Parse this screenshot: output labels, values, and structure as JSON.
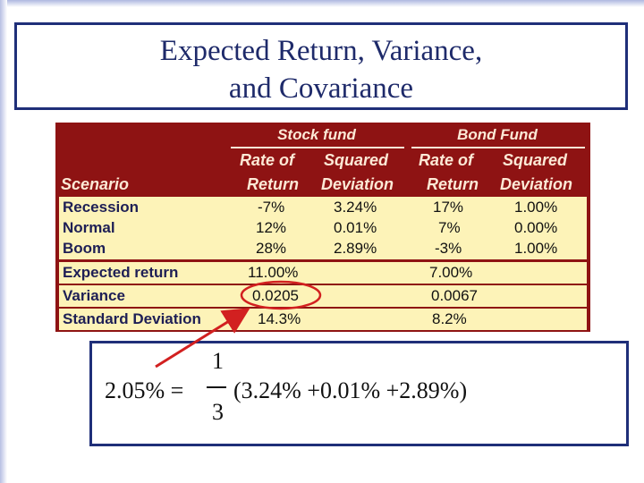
{
  "title": {
    "line1": "Expected Return, Variance,",
    "line2": "and Covariance"
  },
  "table": {
    "group_stock": "Stock fund",
    "group_bond": "Bond Fund",
    "col_scenario": "Scenario",
    "col_rate_1": "Rate of",
    "col_rate_2": "Return",
    "col_sq_1": "Squared",
    "col_sq_2": "Deviation",
    "rows": [
      {
        "label": "Recession",
        "stock_rate": "-7%",
        "stock_sq": "3.24%",
        "bond_rate": "17%",
        "bond_sq": "1.00%"
      },
      {
        "label": "Normal",
        "stock_rate": "12%",
        "stock_sq": "0.01%",
        "bond_rate": "7%",
        "bond_sq": "0.00%"
      },
      {
        "label": "Boom",
        "stock_rate": "28%",
        "stock_sq": "2.89%",
        "bond_rate": "-3%",
        "bond_sq": "1.00%"
      }
    ],
    "expected": {
      "label": "Expected return",
      "stock": "11.00%",
      "bond": "7.00%"
    },
    "variance": {
      "label": "Variance",
      "stock": "0.0205",
      "bond": "0.0067"
    },
    "stddev": {
      "label": "Standard Deviation",
      "stock": "14.3%",
      "bond": "8.2%"
    }
  },
  "formula": {
    "lhs": "2.05% =",
    "numerator": "1",
    "denominator": "3",
    "rhs": "(3.24% +0.01% +2.89%)"
  },
  "colors": {
    "table_bg": "#8e1313",
    "cell_bg": "#fdf3b8",
    "highlight_ellipse": "#d22020",
    "border_blue": "#1f2f79"
  }
}
